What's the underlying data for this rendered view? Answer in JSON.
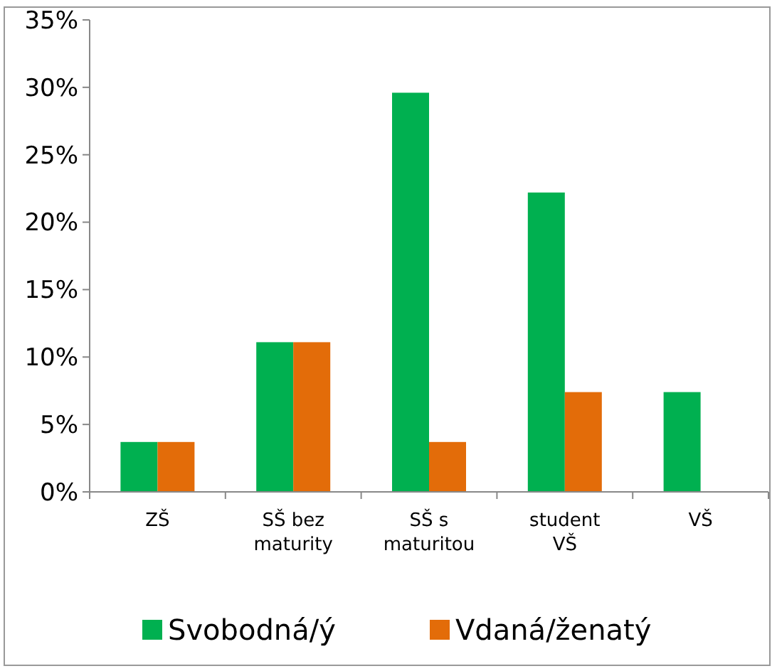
{
  "chart_data": {
    "type": "bar",
    "categories": [
      "ZŠ",
      "SŠ bez maturity",
      "SŠ s maturitou",
      "student VŠ",
      "VŠ"
    ],
    "series": [
      {
        "name": "Svobodná/ý",
        "color": "#00b050",
        "values": [
          3.7,
          11.1,
          29.6,
          22.2,
          7.4
        ]
      },
      {
        "name": "Vdaná/ženatý",
        "color": "#e36c09",
        "values": [
          3.7,
          11.1,
          3.7,
          7.4,
          0
        ]
      }
    ],
    "ylim": [
      0,
      35
    ],
    "yticks": [
      {
        "value": 0,
        "label": "0%"
      },
      {
        "value": 5,
        "label": "5%"
      },
      {
        "value": 10,
        "label": "10%"
      },
      {
        "value": 15,
        "label": "15%"
      },
      {
        "value": 20,
        "label": "20%"
      },
      {
        "value": 25,
        "label": "25%"
      },
      {
        "value": 30,
        "label": "30%"
      },
      {
        "value": 35,
        "label": "35%"
      }
    ],
    "legend": "bottom"
  }
}
